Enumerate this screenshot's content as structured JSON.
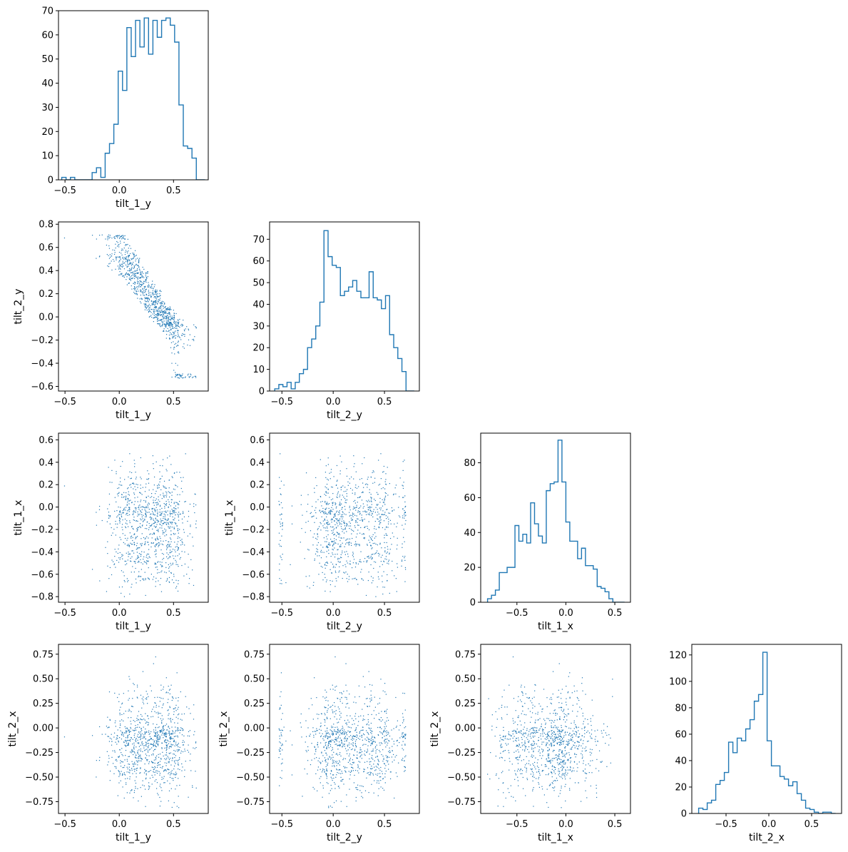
{
  "figure": {
    "type": "corner_plot",
    "variables": [
      "tilt_1_y",
      "tilt_2_y",
      "tilt_1_x",
      "tilt_2_x"
    ],
    "colors": {
      "histogram": "#1f77b4",
      "scatter": "#1f77b4",
      "axes": "#000000",
      "background": "#ffffff"
    }
  },
  "chart_data": [
    {
      "type": "histogram",
      "row": 0,
      "col": 0,
      "variable": "tilt_1_y",
      "xlabel": "tilt_1_y",
      "ylabel": "",
      "xlim": [
        -0.56,
        0.82
      ],
      "ylim": [
        0,
        70
      ],
      "xticks": [
        -0.5,
        0.0,
        0.5
      ],
      "xtick_labels": [
        "−0.5",
        "0.0",
        "0.5"
      ],
      "yticks": [
        0,
        10,
        20,
        30,
        40,
        50,
        60,
        70
      ],
      "ytick_labels": [
        "0",
        "10",
        "20",
        "30",
        "40",
        "50",
        "60",
        "70"
      ],
      "bin_edges": [
        -0.53,
        -0.49,
        -0.45,
        -0.41,
        -0.37,
        -0.33,
        -0.29,
        -0.25,
        -0.21,
        -0.17,
        -0.13,
        -0.09,
        -0.05,
        -0.01,
        0.03,
        0.07,
        0.11,
        0.15,
        0.19,
        0.23,
        0.27,
        0.31,
        0.35,
        0.39,
        0.43,
        0.47,
        0.51,
        0.55,
        0.59,
        0.63,
        0.67,
        0.71,
        0.75,
        0.79
      ],
      "counts": [
        1,
        0,
        1,
        0,
        0,
        0,
        0,
        3,
        5,
        1,
        11,
        15,
        23,
        45,
        37,
        63,
        51,
        66,
        55,
        67,
        52,
        66,
        59,
        66,
        67,
        64,
        57,
        31,
        14,
        13,
        9,
        0,
        0
      ]
    },
    {
      "type": "scatter",
      "row": 1,
      "col": 0,
      "x_variable": "tilt_1_y",
      "y_variable": "tilt_2_y",
      "xlabel": "tilt_1_y",
      "ylabel": "tilt_2_y",
      "xlim": [
        -0.56,
        0.82
      ],
      "ylim": [
        -0.64,
        0.82
      ],
      "xticks": [
        -0.5,
        0.0,
        0.5
      ],
      "xtick_labels": [
        "−0.5",
        "0.0",
        "0.5"
      ],
      "yticks": [
        -0.6,
        -0.4,
        -0.2,
        0.0,
        0.2,
        0.4,
        0.6,
        0.8
      ],
      "ytick_labels": [
        "−0.6",
        "−0.4",
        "−0.2",
        "0.0",
        "0.2",
        "0.4",
        "0.6",
        "0.8"
      ],
      "n_points": 1000
    },
    {
      "type": "histogram",
      "row": 1,
      "col": 1,
      "variable": "tilt_2_y",
      "xlabel": "tilt_2_y",
      "ylabel": "",
      "xlim": [
        -0.62,
        0.84
      ],
      "ylim": [
        0,
        78
      ],
      "xticks": [
        -0.5,
        0.0,
        0.5
      ],
      "xtick_labels": [
        "−0.5",
        "0.0",
        "0.5"
      ],
      "yticks": [
        0,
        10,
        20,
        30,
        40,
        50,
        60,
        70
      ],
      "ytick_labels": [
        "0",
        "10",
        "20",
        "30",
        "40",
        "50",
        "60",
        "70"
      ],
      "bin_edges": [
        -0.57,
        -0.53,
        -0.49,
        -0.45,
        -0.41,
        -0.37,
        -0.33,
        -0.29,
        -0.25,
        -0.21,
        -0.17,
        -0.13,
        -0.09,
        -0.05,
        -0.01,
        0.03,
        0.07,
        0.11,
        0.15,
        0.19,
        0.23,
        0.27,
        0.31,
        0.35,
        0.39,
        0.43,
        0.47,
        0.51,
        0.55,
        0.59,
        0.63,
        0.67,
        0.71,
        0.75,
        0.79
      ],
      "counts": [
        1,
        3,
        2,
        4,
        1,
        4,
        8,
        10,
        20,
        24,
        30,
        41,
        74,
        62,
        58,
        57,
        44,
        46,
        48,
        51,
        46,
        43,
        43,
        55,
        43,
        42,
        38,
        44,
        26,
        20,
        15,
        9,
        0,
        0
      ]
    },
    {
      "type": "scatter",
      "row": 2,
      "col": 0,
      "x_variable": "tilt_1_y",
      "y_variable": "tilt_1_x",
      "xlabel": "tilt_1_y",
      "ylabel": "tilt_1_x",
      "xlim": [
        -0.56,
        0.82
      ],
      "ylim": [
        -0.85,
        0.66
      ],
      "xticks": [
        -0.5,
        0.0,
        0.5
      ],
      "xtick_labels": [
        "−0.5",
        "0.0",
        "0.5"
      ],
      "yticks": [
        -0.8,
        -0.6,
        -0.4,
        -0.2,
        0.0,
        0.2,
        0.4,
        0.6
      ],
      "ytick_labels": [
        "−0.8",
        "−0.6",
        "−0.4",
        "−0.2",
        "0.0",
        "0.2",
        "0.4",
        "0.6"
      ],
      "n_points": 1000
    },
    {
      "type": "scatter",
      "row": 2,
      "col": 1,
      "x_variable": "tilt_2_y",
      "y_variable": "tilt_1_x",
      "xlabel": "tilt_2_y",
      "ylabel": "tilt_1_x",
      "xlim": [
        -0.62,
        0.84
      ],
      "ylim": [
        -0.85,
        0.66
      ],
      "xticks": [
        -0.5,
        0.0,
        0.5
      ],
      "xtick_labels": [
        "−0.5",
        "0.0",
        "0.5"
      ],
      "yticks": [
        -0.8,
        -0.6,
        -0.4,
        -0.2,
        0.0,
        0.2,
        0.4,
        0.6
      ],
      "ytick_labels": [
        "−0.8",
        "−0.6",
        "−0.4",
        "−0.2",
        "0.0",
        "0.2",
        "0.4",
        "0.6"
      ],
      "n_points": 1000
    },
    {
      "type": "histogram",
      "row": 2,
      "col": 2,
      "variable": "tilt_1_x",
      "xlabel": "tilt_1_x",
      "ylabel": "",
      "xlim": [
        -0.87,
        0.66
      ],
      "ylim": [
        0,
        97
      ],
      "xticks": [
        -0.5,
        0.0,
        0.5
      ],
      "xtick_labels": [
        "−0.5",
        "0.0",
        "0.5"
      ],
      "yticks": [
        0,
        20,
        40,
        60,
        80
      ],
      "ytick_labels": [
        "0",
        "20",
        "40",
        "60",
        "80"
      ],
      "bin_edges": [
        -0.8,
        -0.76,
        -0.72,
        -0.68,
        -0.64,
        -0.6,
        -0.56,
        -0.52,
        -0.48,
        -0.44,
        -0.4,
        -0.36,
        -0.32,
        -0.28,
        -0.24,
        -0.2,
        -0.16,
        -0.12,
        -0.08,
        -0.04,
        0.0,
        0.04,
        0.08,
        0.12,
        0.16,
        0.2,
        0.24,
        0.28,
        0.32,
        0.36,
        0.4,
        0.44,
        0.48,
        0.52,
        0.56,
        0.6
      ],
      "counts": [
        2,
        4,
        7,
        17,
        17,
        20,
        20,
        44,
        35,
        39,
        34,
        57,
        45,
        38,
        34,
        64,
        68,
        69,
        93,
        69,
        46,
        35,
        35,
        25,
        31,
        21,
        21,
        19,
        9,
        8,
        6,
        2,
        0,
        0,
        0
      ]
    },
    {
      "type": "scatter",
      "row": 3,
      "col": 0,
      "x_variable": "tilt_1_y",
      "y_variable": "tilt_2_x",
      "xlabel": "tilt_1_y",
      "ylabel": "tilt_2_x",
      "xlim": [
        -0.56,
        0.82
      ],
      "ylim": [
        -0.87,
        0.85
      ],
      "xticks": [
        -0.5,
        0.0,
        0.5
      ],
      "xtick_labels": [
        "−0.5",
        "0.0",
        "0.5"
      ],
      "yticks": [
        -0.75,
        -0.5,
        -0.25,
        0.0,
        0.25,
        0.5,
        0.75
      ],
      "ytick_labels": [
        "−0.75",
        "−0.50",
        "−0.25",
        "0.00",
        "0.25",
        "0.50",
        "0.75"
      ],
      "n_points": 1000
    },
    {
      "type": "scatter",
      "row": 3,
      "col": 1,
      "x_variable": "tilt_2_y",
      "y_variable": "tilt_2_x",
      "xlabel": "tilt_2_y",
      "ylabel": "tilt_2_x",
      "xlim": [
        -0.62,
        0.84
      ],
      "ylim": [
        -0.87,
        0.85
      ],
      "xticks": [
        -0.5,
        0.0,
        0.5
      ],
      "xtick_labels": [
        "−0.5",
        "0.0",
        "0.5"
      ],
      "yticks": [
        -0.75,
        -0.5,
        -0.25,
        0.0,
        0.25,
        0.5,
        0.75
      ],
      "ytick_labels": [
        "−0.75",
        "−0.50",
        "−0.25",
        "0.00",
        "0.25",
        "0.50",
        "0.75"
      ],
      "n_points": 1000
    },
    {
      "type": "scatter",
      "row": 3,
      "col": 2,
      "x_variable": "tilt_1_x",
      "y_variable": "tilt_2_x",
      "xlabel": "tilt_1_x",
      "ylabel": "tilt_2_x",
      "xlim": [
        -0.87,
        0.66
      ],
      "ylim": [
        -0.87,
        0.85
      ],
      "xticks": [
        -0.5,
        0.0,
        0.5
      ],
      "xtick_labels": [
        "−0.5",
        "0.0",
        "0.5"
      ],
      "yticks": [
        -0.75,
        -0.5,
        -0.25,
        0.0,
        0.25,
        0.5,
        0.75
      ],
      "ytick_labels": [
        "−0.75",
        "−0.50",
        "−0.25",
        "0.00",
        "0.25",
        "0.50",
        "0.75"
      ],
      "n_points": 1000
    },
    {
      "type": "histogram",
      "row": 3,
      "col": 3,
      "variable": "tilt_2_x",
      "xlabel": "tilt_2_x",
      "ylabel": "",
      "xlim": [
        -0.9,
        0.85
      ],
      "ylim": [
        0,
        128
      ],
      "xticks": [
        -0.5,
        0.0,
        0.5
      ],
      "xtick_labels": [
        "−0.5",
        "0.0",
        "0.5"
      ],
      "yticks": [
        0,
        20,
        40,
        60,
        80,
        100,
        120
      ],
      "ytick_labels": [
        "0",
        "20",
        "40",
        "60",
        "80",
        "100",
        "120"
      ],
      "bin_edges": [
        -0.82,
        -0.77,
        -0.72,
        -0.67,
        -0.62,
        -0.57,
        -0.52,
        -0.47,
        -0.42,
        -0.37,
        -0.32,
        -0.27,
        -0.22,
        -0.17,
        -0.12,
        -0.07,
        -0.02,
        0.03,
        0.08,
        0.13,
        0.18,
        0.23,
        0.28,
        0.33,
        0.38,
        0.43,
        0.48,
        0.53,
        0.58,
        0.63,
        0.68,
        0.73,
        0.78
      ],
      "counts": [
        4,
        3,
        8,
        10,
        22,
        25,
        31,
        54,
        46,
        57,
        55,
        64,
        71,
        85,
        90,
        122,
        55,
        36,
        36,
        28,
        26,
        21,
        24,
        15,
        10,
        4,
        3,
        1,
        0,
        1,
        1,
        0
      ]
    }
  ]
}
